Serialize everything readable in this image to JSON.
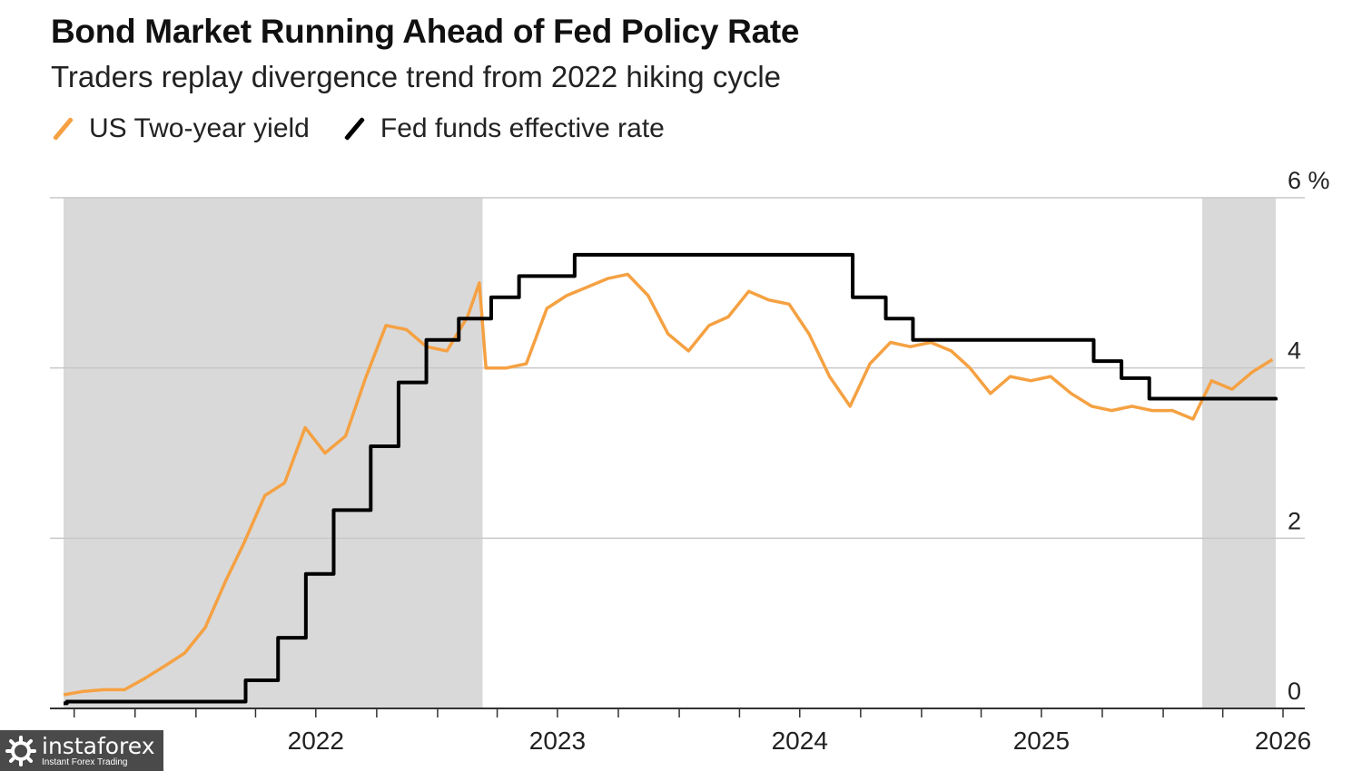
{
  "header": {
    "title": "Bond Market Running Ahead of Fed Policy Rate",
    "subtitle": "Traders replay divergence trend from 2022 hiking cycle"
  },
  "legend": [
    {
      "label": "US Two-year yield",
      "color": "#f5a142"
    },
    {
      "label": "Fed funds effective rate",
      "color": "#000000"
    }
  ],
  "watermark": {
    "name": "instaforex",
    "tagline": "Instant Forex Trading"
  },
  "chart_data": {
    "type": "line",
    "title": "Bond Market Running Ahead of Fed Policy Rate",
    "subtitle": "Traders replay divergence trend from 2022 hiking cycle",
    "ylim": [
      0,
      6
    ],
    "yticks": [
      0,
      2,
      4,
      6
    ],
    "ytick_labels": [
      "0",
      "2",
      "4",
      "6 %"
    ],
    "xlim": [
      "2021-06-15",
      "2026-06-20"
    ],
    "xticks": [
      "2022-01-01",
      "2023-01-01",
      "2024-01-01",
      "2025-01-01",
      "2026-01-01"
    ],
    "xtick_labels": [
      "2022",
      "2023",
      "2024",
      "2025",
      "2026"
    ],
    "grid": true,
    "legend_position": "top-left",
    "shaded_periods": [
      {
        "start": "2021-06-15",
        "end": "2023-03-10"
      },
      {
        "start": "2026-03-01",
        "end": "2026-06-20"
      }
    ],
    "series": [
      {
        "name": "US Two-year yield",
        "color": "#f5a142",
        "points": [
          [
            "2021-06-15",
            0.16
          ],
          [
            "2021-07-15",
            0.2
          ],
          [
            "2021-08-15",
            0.22
          ],
          [
            "2021-09-15",
            0.22
          ],
          [
            "2021-10-15",
            0.35
          ],
          [
            "2021-11-15",
            0.5
          ],
          [
            "2021-12-15",
            0.65
          ],
          [
            "2022-01-15",
            0.95
          ],
          [
            "2022-02-15",
            1.5
          ],
          [
            "2022-03-15",
            1.95
          ],
          [
            "2022-04-15",
            2.5
          ],
          [
            "2022-05-15",
            2.65
          ],
          [
            "2022-06-15",
            3.3
          ],
          [
            "2022-07-15",
            3.0
          ],
          [
            "2022-08-15",
            3.2
          ],
          [
            "2022-09-15",
            3.9
          ],
          [
            "2022-10-15",
            4.5
          ],
          [
            "2022-11-15",
            4.45
          ],
          [
            "2022-12-15",
            4.25
          ],
          [
            "2023-01-15",
            4.2
          ],
          [
            "2023-02-15",
            4.6
          ],
          [
            "2023-03-05",
            5.0
          ],
          [
            "2023-03-15",
            4.0
          ],
          [
            "2023-04-15",
            4.0
          ],
          [
            "2023-05-15",
            4.05
          ],
          [
            "2023-06-15",
            4.7
          ],
          [
            "2023-07-15",
            4.85
          ],
          [
            "2023-08-15",
            4.95
          ],
          [
            "2023-09-15",
            5.05
          ],
          [
            "2023-10-15",
            5.1
          ],
          [
            "2023-11-15",
            4.85
          ],
          [
            "2023-12-15",
            4.4
          ],
          [
            "2024-01-15",
            4.2
          ],
          [
            "2024-02-15",
            4.5
          ],
          [
            "2024-03-15",
            4.6
          ],
          [
            "2024-04-15",
            4.9
          ],
          [
            "2024-05-15",
            4.8
          ],
          [
            "2024-06-15",
            4.75
          ],
          [
            "2024-07-15",
            4.4
          ],
          [
            "2024-08-15",
            3.9
          ],
          [
            "2024-09-15",
            3.55
          ],
          [
            "2024-10-15",
            4.05
          ],
          [
            "2024-11-15",
            4.3
          ],
          [
            "2024-12-15",
            4.25
          ],
          [
            "2025-01-15",
            4.3
          ],
          [
            "2025-02-15",
            4.2
          ],
          [
            "2025-03-15",
            4.0
          ],
          [
            "2025-04-15",
            3.7
          ],
          [
            "2025-05-15",
            3.9
          ],
          [
            "2025-06-15",
            3.85
          ],
          [
            "2025-07-15",
            3.9
          ],
          [
            "2025-08-15",
            3.7
          ],
          [
            "2025-09-15",
            3.55
          ],
          [
            "2025-10-15",
            3.5
          ],
          [
            "2025-11-15",
            3.55
          ],
          [
            "2025-12-15",
            3.5
          ],
          [
            "2026-01-15",
            3.5
          ],
          [
            "2026-02-15",
            3.4
          ],
          [
            "2026-03-15",
            3.85
          ],
          [
            "2026-04-15",
            3.75
          ],
          [
            "2026-05-15",
            3.95
          ],
          [
            "2026-06-15",
            4.1
          ]
        ]
      },
      {
        "name": "Fed funds effective rate",
        "color": "#000000",
        "step": true,
        "points": [
          [
            "2021-06-15",
            0.06
          ],
          [
            "2021-06-20",
            0.08
          ],
          [
            "2022-03-17",
            0.33
          ],
          [
            "2022-05-05",
            0.83
          ],
          [
            "2022-06-16",
            1.58
          ],
          [
            "2022-07-28",
            2.33
          ],
          [
            "2022-09-22",
            3.08
          ],
          [
            "2022-11-03",
            3.83
          ],
          [
            "2022-12-15",
            4.33
          ],
          [
            "2023-02-02",
            4.58
          ],
          [
            "2023-03-23",
            4.83
          ],
          [
            "2023-05-04",
            5.08
          ],
          [
            "2023-07-27",
            5.33
          ],
          [
            "2024-09-19",
            4.83
          ],
          [
            "2024-11-08",
            4.58
          ],
          [
            "2024-12-19",
            4.33
          ],
          [
            "2025-09-18",
            4.08
          ],
          [
            "2025-10-30",
            3.88
          ],
          [
            "2025-12-11",
            3.64
          ],
          [
            "2026-06-20",
            3.62
          ]
        ]
      }
    ]
  }
}
